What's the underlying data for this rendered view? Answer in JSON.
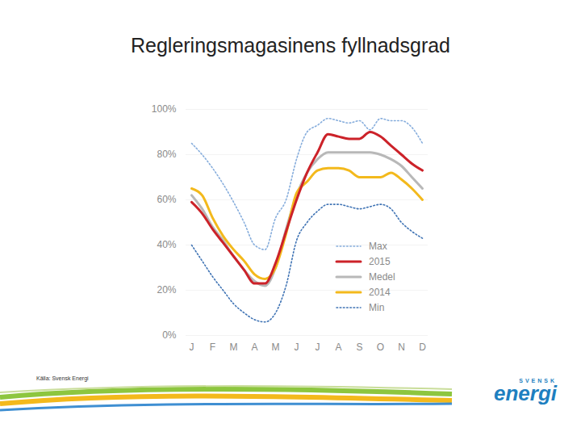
{
  "chart_data": {
    "type": "line",
    "title": "Regleringsmagasinens fyllnadsgrad",
    "source": "Källa: Svensk Energi",
    "logo": {
      "top": "SVENSK",
      "main": "energi"
    },
    "categories": [
      "J",
      null,
      "F",
      null,
      "M",
      null,
      "A",
      null,
      "M",
      null,
      "J",
      null,
      "J",
      null,
      "A",
      null,
      "S",
      null,
      "O",
      null,
      "N",
      null,
      "D"
    ],
    "series": [
      {
        "name": "Max",
        "color": "#86addc",
        "line_style": "dotted",
        "values": [
          85,
          80,
          74,
          67,
          59,
          50,
          40,
          38,
          52,
          60,
          78,
          90,
          93,
          96,
          95,
          94,
          95,
          91,
          96,
          95,
          95,
          92,
          85
        ]
      },
      {
        "name": "2015",
        "color": "#cc2229",
        "line_style": "solid",
        "values": [
          59,
          54,
          47,
          41,
          35,
          29,
          23,
          23,
          32,
          46,
          60,
          72,
          81,
          89,
          88,
          87,
          87,
          90,
          88,
          84,
          80,
          76,
          73
        ]
      },
      {
        "name": "Medel",
        "color": "#b8b8b8",
        "line_style": "solid",
        "values": [
          62,
          56,
          48,
          42,
          35,
          29,
          24,
          22,
          30,
          47,
          62,
          72,
          78,
          81,
          81,
          81,
          81,
          81,
          80,
          78,
          75,
          70,
          65
        ]
      },
      {
        "name": "2014",
        "color": "#f3b91c",
        "line_style": "solid",
        "values": [
          65,
          62,
          52,
          44,
          38,
          33,
          27,
          25,
          30,
          45,
          63,
          68,
          73,
          74,
          74,
          73,
          70,
          70,
          70,
          72,
          69,
          65,
          60
        ]
      },
      {
        "name": "Min",
        "color": "#3f73b4",
        "line_style": "dotted",
        "values": [
          40,
          33,
          26,
          20,
          14,
          10,
          7,
          6,
          10,
          22,
          42,
          50,
          55,
          58,
          58,
          57,
          56,
          57,
          58,
          56,
          50,
          46,
          43
        ]
      }
    ],
    "ylim": [
      0,
      100
    ],
    "yticks": [
      {
        "value": 0,
        "label": "0%"
      },
      {
        "value": 20,
        "label": "20%"
      },
      {
        "value": 40,
        "label": "40%"
      },
      {
        "value": 60,
        "label": "60%"
      },
      {
        "value": 80,
        "label": "80%"
      },
      {
        "value": 100,
        "label": "100%"
      }
    ],
    "grid": true,
    "legend": "bottom-right"
  }
}
